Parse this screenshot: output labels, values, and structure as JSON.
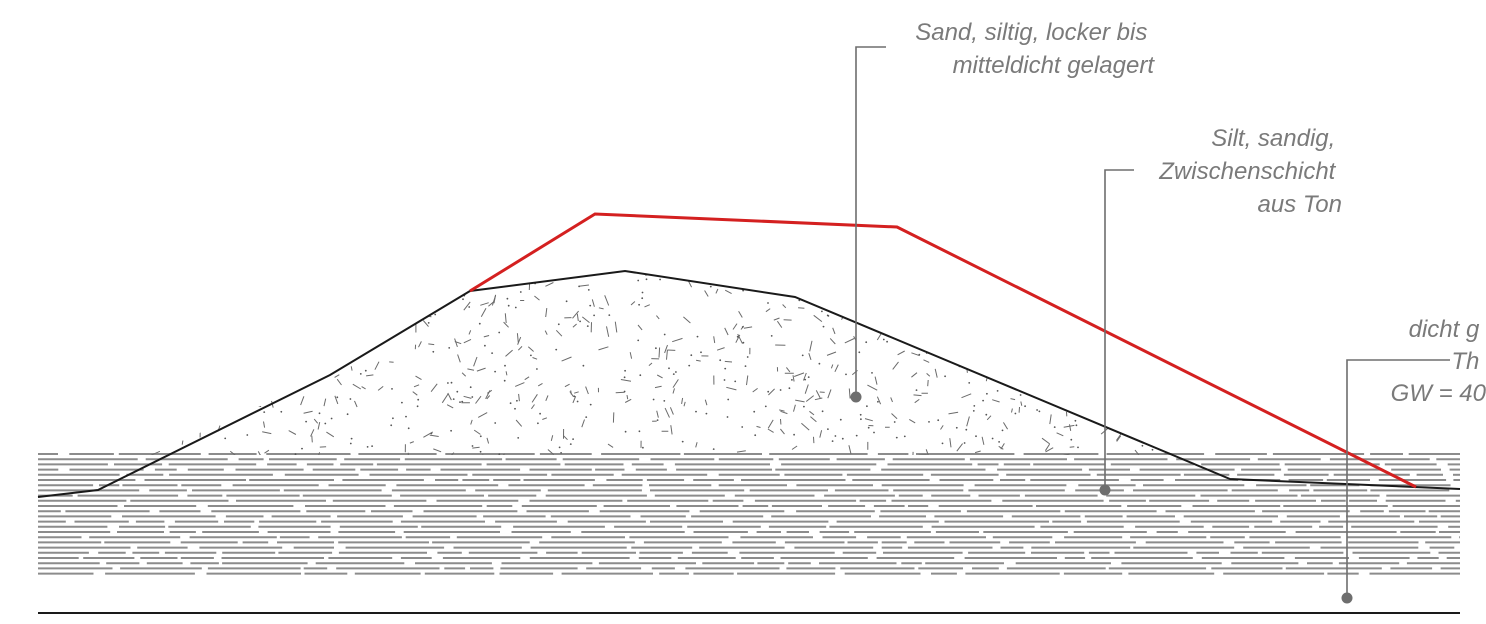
{
  "colors": {
    "profile_line": "#d42020",
    "terrain_line": "#1a1a1a",
    "hatch": "#8c8c8c",
    "leader": "#6e6e6e",
    "label_text": "#7a7a7a"
  },
  "labels": {
    "sand": [
      "Sand, siltig, locker bis",
      "mitteldicht gelagert"
    ],
    "silt": [
      "Silt, sandig,",
      "Zwischenschicht",
      "aus Ton"
    ],
    "right": [
      "dicht g",
      "Th",
      "GW = 40"
    ]
  }
}
